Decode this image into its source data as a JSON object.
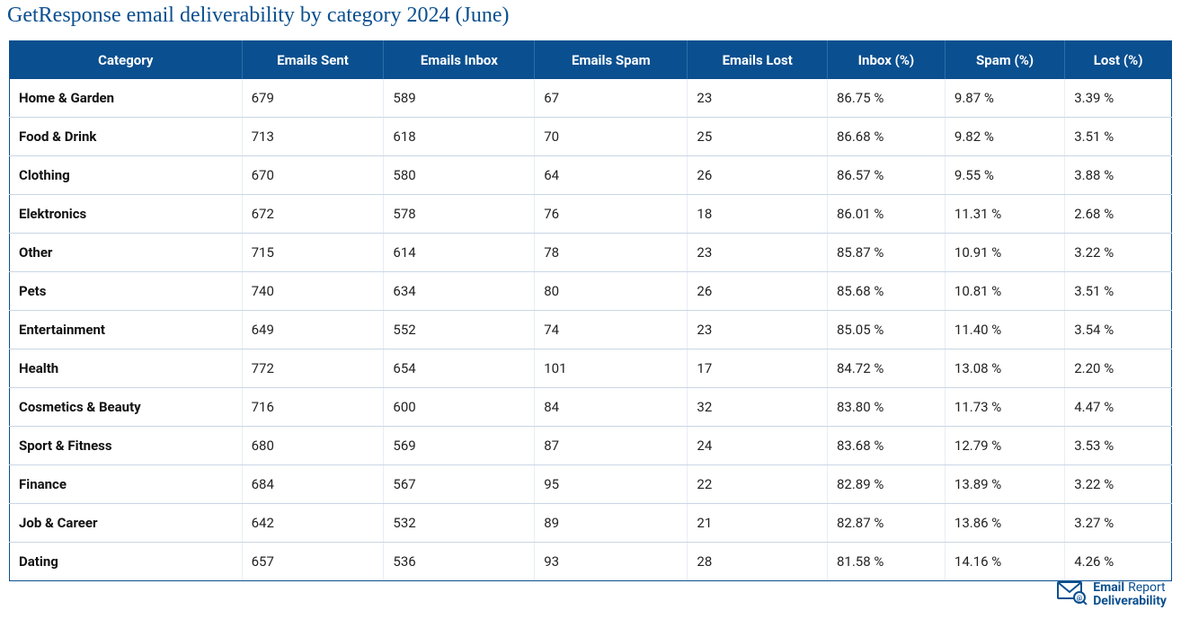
{
  "title": "GetResponse email deliverability by category 2024 (June)",
  "colors": {
    "header_bg": "#0a4f8f",
    "header_text": "#ffffff",
    "title_text": "#0a4f8f",
    "body_text": "#222222",
    "row_border": "#c9d6e4",
    "cell_border": "#e8eef5",
    "outer_border": "#0a4f8f"
  },
  "table": {
    "columns": [
      "Category",
      "Emails Sent",
      "Emails Inbox",
      "Emails Spam",
      "Emails Lost",
      "Inbox (%)",
      "Spam (%)",
      "Lost (%)"
    ],
    "rows": [
      [
        "Home & Garden",
        "679",
        "589",
        "67",
        "23",
        "86.75 %",
        "9.87 %",
        "3.39 %"
      ],
      [
        "Food & Drink",
        "713",
        "618",
        "70",
        "25",
        "86.68 %",
        "9.82 %",
        "3.51 %"
      ],
      [
        "Clothing",
        "670",
        "580",
        "64",
        "26",
        "86.57 %",
        "9.55 %",
        "3.88 %"
      ],
      [
        "Elektronics",
        "672",
        "578",
        "76",
        "18",
        "86.01 %",
        "11.31 %",
        "2.68 %"
      ],
      [
        "Other",
        "715",
        "614",
        "78",
        "23",
        "85.87 %",
        "10.91 %",
        "3.22 %"
      ],
      [
        "Pets",
        "740",
        "634",
        "80",
        "26",
        "85.68 %",
        "10.81 %",
        "3.51 %"
      ],
      [
        "Entertainment",
        "649",
        "552",
        "74",
        "23",
        "85.05 %",
        "11.40 %",
        "3.54 %"
      ],
      [
        "Health",
        "772",
        "654",
        "101",
        "17",
        "84.72 %",
        "13.08 %",
        "2.20 %"
      ],
      [
        "Cosmetics & Beauty",
        "716",
        "600",
        "84",
        "32",
        "83.80 %",
        "11.73 %",
        "4.47 %"
      ],
      [
        "Sport & Fitness",
        "680",
        "569",
        "87",
        "24",
        "83.68 %",
        "12.79 %",
        "3.53 %"
      ],
      [
        "Finance",
        "684",
        "567",
        "95",
        "22",
        "82.89 %",
        "13.89 %",
        "3.22 %"
      ],
      [
        "Job & Career",
        "642",
        "532",
        "89",
        "21",
        "82.87 %",
        "13.86 %",
        "3.27 %"
      ],
      [
        "Dating",
        "657",
        "536",
        "93",
        "28",
        "81.58 %",
        "14.16 %",
        "4.26 %"
      ]
    ]
  },
  "logo": {
    "line1a": "Email",
    "line1b": "Report",
    "line2": "Deliverability"
  }
}
